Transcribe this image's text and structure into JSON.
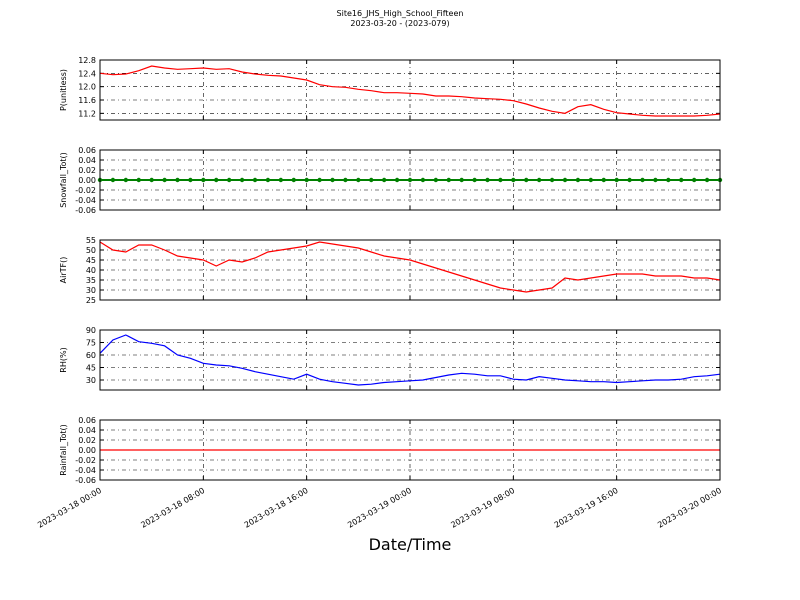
{
  "title": "Site16_JHS_High_School_Fifteen",
  "subtitle": "2023-03-20 - (2023-079)",
  "xlabel": "Date/Time",
  "x": [
    "2023-03-18 00:00",
    "2023-03-18 01:00",
    "2023-03-18 02:00",
    "2023-03-18 03:00",
    "2023-03-18 04:00",
    "2023-03-18 05:00",
    "2023-03-18 06:00",
    "2023-03-18 07:00",
    "2023-03-18 08:00",
    "2023-03-18 09:00",
    "2023-03-18 10:00",
    "2023-03-18 11:00",
    "2023-03-18 12:00",
    "2023-03-18 13:00",
    "2023-03-18 14:00",
    "2023-03-18 15:00",
    "2023-03-18 16:00",
    "2023-03-18 17:00",
    "2023-03-18 18:00",
    "2023-03-18 19:00",
    "2023-03-18 20:00",
    "2023-03-18 21:00",
    "2023-03-18 22:00",
    "2023-03-18 23:00",
    "2023-03-19 00:00",
    "2023-03-19 01:00",
    "2023-03-19 02:00",
    "2023-03-19 03:00",
    "2023-03-19 04:00",
    "2023-03-19 05:00",
    "2023-03-19 06:00",
    "2023-03-19 07:00",
    "2023-03-19 08:00",
    "2023-03-19 09:00",
    "2023-03-19 10:00",
    "2023-03-19 11:00",
    "2023-03-19 12:00",
    "2023-03-19 13:00",
    "2023-03-19 14:00",
    "2023-03-19 15:00",
    "2023-03-19 16:00",
    "2023-03-19 17:00",
    "2023-03-19 18:00",
    "2023-03-19 19:00",
    "2023-03-19 20:00",
    "2023-03-19 21:00",
    "2023-03-19 22:00",
    "2023-03-19 23:00",
    "2023-03-20 00:00"
  ],
  "xticks": [
    "2023-03-18 00:00",
    "2023-03-18 08:00",
    "2023-03-18 16:00",
    "2023-03-19 00:00",
    "2023-03-19 08:00",
    "2023-03-19 16:00",
    "2023-03-20 00:00"
  ],
  "chart_data": [
    {
      "type": "line",
      "ylabel": "P(unitless)",
      "ylim": [
        11.0,
        12.8
      ],
      "grid": true,
      "yticks": [
        {
          "value": 11.2,
          "label": "11.2"
        },
        11.6,
        {
          "value": 12,
          "label": "12.0"
        },
        12.4,
        12.8
      ],
      "series": [
        {
          "color": "#ff0000",
          "values": [
            12.4,
            12.36,
            12.38,
            12.48,
            12.62,
            12.56,
            12.52,
            12.54,
            12.56,
            12.52,
            12.54,
            12.44,
            12.38,
            12.34,
            12.32,
            12.26,
            12.2,
            12.06,
            12.0,
            11.98,
            11.92,
            11.88,
            11.82,
            11.82,
            11.8,
            11.78,
            11.72,
            11.72,
            11.7,
            11.66,
            11.64,
            11.62,
            11.58,
            11.48,
            11.36,
            11.26,
            11.2,
            11.4,
            11.46,
            11.32,
            11.22,
            11.18,
            11.14,
            11.12,
            11.12,
            11.12,
            11.12,
            11.14,
            11.18
          ]
        }
      ]
    },
    {
      "type": "line",
      "ylabel": "Snowfall_Tot()",
      "ylim": [
        -0.06,
        0.06
      ],
      "grid": true,
      "yticks": [
        -0.06,
        -0.04,
        -0.02,
        {
          "value": 0,
          "label": "0.00"
        },
        0.02,
        0.04,
        0.06
      ],
      "series": [
        {
          "color": "#008000",
          "marker": "o",
          "values": [
            0,
            0,
            0,
            0,
            0,
            0,
            0,
            0,
            0,
            0,
            0,
            0,
            0,
            0,
            0,
            0,
            0,
            0,
            0,
            0,
            0,
            0,
            0,
            0,
            0,
            0,
            0,
            0,
            0,
            0,
            0,
            0,
            0,
            0,
            0,
            0,
            0,
            0,
            0,
            0,
            0,
            0,
            0,
            0,
            0,
            0,
            0,
            0,
            0
          ]
        }
      ]
    },
    {
      "type": "line",
      "ylabel": "AirTF()",
      "ylim": [
        25,
        55
      ],
      "grid": true,
      "yticks": [
        25,
        30,
        35,
        40,
        45,
        50,
        55
      ],
      "series": [
        {
          "color": "#ff0000",
          "values": [
            54,
            50,
            49,
            52.5,
            52.5,
            50,
            47,
            46,
            45,
            42,
            45,
            44,
            46,
            49,
            50,
            51,
            52,
            54,
            53,
            52,
            51,
            49,
            47,
            46,
            45,
            43,
            41,
            39,
            37,
            35,
            33,
            31,
            30,
            29,
            30,
            31,
            36,
            35,
            36,
            37,
            38,
            38,
            38,
            37,
            37,
            37,
            36,
            36,
            35
          ]
        }
      ]
    },
    {
      "type": "line",
      "ylabel": "RH(%)",
      "ylim": [
        18,
        90
      ],
      "grid": true,
      "yticks": [
        30,
        45,
        60,
        75,
        90
      ],
      "series": [
        {
          "color": "#0000ff",
          "values": [
            62,
            78,
            84,
            76,
            74,
            71,
            60,
            56,
            50,
            48,
            47,
            44,
            40,
            37,
            34,
            31,
            37,
            31,
            28,
            26,
            24,
            25,
            27,
            28,
            29,
            30,
            33,
            36,
            38,
            37,
            35,
            35,
            31,
            30,
            34,
            32,
            30,
            29,
            28,
            28,
            27,
            28,
            29,
            30,
            30,
            31,
            34,
            35,
            37
          ]
        }
      ]
    },
    {
      "type": "line",
      "ylabel": "Rainfall_Tot()",
      "ylim": [
        -0.06,
        0.06
      ],
      "grid": true,
      "yticks": [
        -0.06,
        -0.04,
        -0.02,
        {
          "value": 0,
          "label": "0.00"
        },
        0.02,
        0.04,
        0.06
      ],
      "series": [
        {
          "color": "#ff0000",
          "values": [
            0,
            0,
            0,
            0,
            0,
            0,
            0,
            0,
            0,
            0,
            0,
            0,
            0,
            0,
            0,
            0,
            0,
            0,
            0,
            0,
            0,
            0,
            0,
            0,
            0,
            0,
            0,
            0,
            0,
            0,
            0,
            0,
            0,
            0,
            0,
            0,
            0,
            0,
            0,
            0,
            0,
            0,
            0,
            0,
            0,
            0,
            0,
            0,
            0
          ]
        }
      ]
    }
  ]
}
